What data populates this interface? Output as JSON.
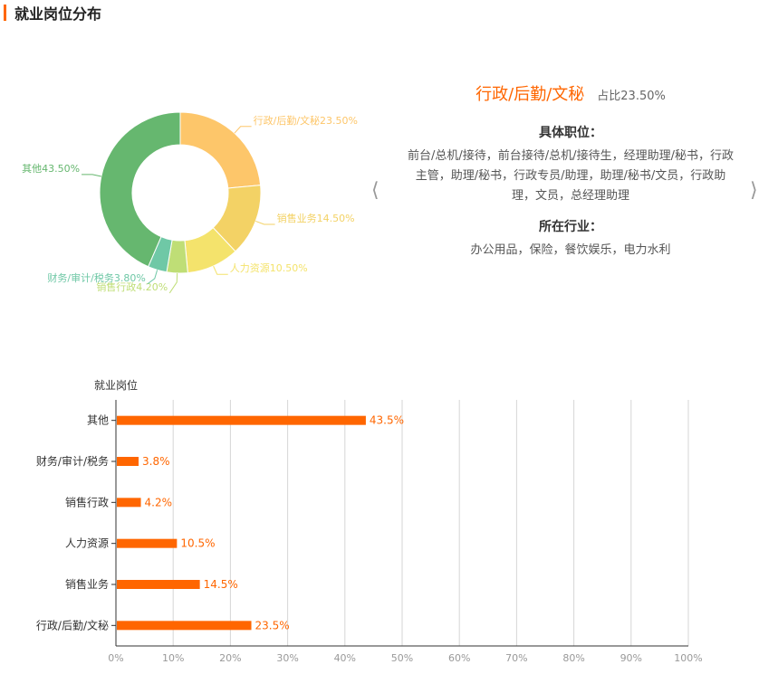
{
  "header": {
    "title": "就业岗位分布"
  },
  "detail": {
    "name": "行政/后勤/文秘",
    "ratio": "占比23.50%",
    "positions_title": "具体职位：",
    "positions": "前台/总机/接待，前台接待/总机/接待生，经理助理/秘书，行政主管，助理/秘书，行政专员/助理，助理/秘书/文员，行政助理，文员，总经理助理",
    "industry_title": "所在行业：",
    "industries": "办公用品，保险，餐饮娱乐，电力水利",
    "prev_icon": "chevron-left-icon",
    "next_icon": "chevron-right-icon"
  },
  "chart_data": [
    {
      "type": "pie",
      "variant": "donut",
      "slices": [
        {
          "label": "行政/后勤/文秘23.50%",
          "value": 23.5,
          "color": "#fdc66a"
        },
        {
          "label": "销售业务14.50%",
          "value": 14.5,
          "color": "#f3d265"
        },
        {
          "label": "人力资源10.50%",
          "value": 10.5,
          "color": "#f4e36c"
        },
        {
          "label": "销售行政4.20%",
          "value": 4.2,
          "color": "#bfde76"
        },
        {
          "label": "财务/审计/税务3.80%",
          "value": 3.8,
          "color": "#6fc8a6"
        },
        {
          "label": "其他43.50%",
          "value": 43.5,
          "color": "#66b76f"
        }
      ]
    },
    {
      "type": "bar",
      "orientation": "horizontal",
      "ylabel": "就业岗位",
      "categories": [
        "其他",
        "财务/审计/税务",
        "销售行政",
        "人力资源",
        "销售业务",
        "行政/后勤/文秘"
      ],
      "values": [
        43.5,
        3.8,
        4.2,
        10.5,
        14.5,
        23.5
      ],
      "value_labels": [
        "43.5%",
        "3.8%",
        "4.2%",
        "10.5%",
        "14.5%",
        "23.5%"
      ],
      "xlim": [
        0,
        100
      ],
      "xticks": [
        "0%",
        "10%",
        "20%",
        "30%",
        "40%",
        "50%",
        "60%",
        "70%",
        "80%",
        "90%",
        "100%"
      ],
      "grid": true,
      "bar_color": "#ff6600"
    }
  ]
}
